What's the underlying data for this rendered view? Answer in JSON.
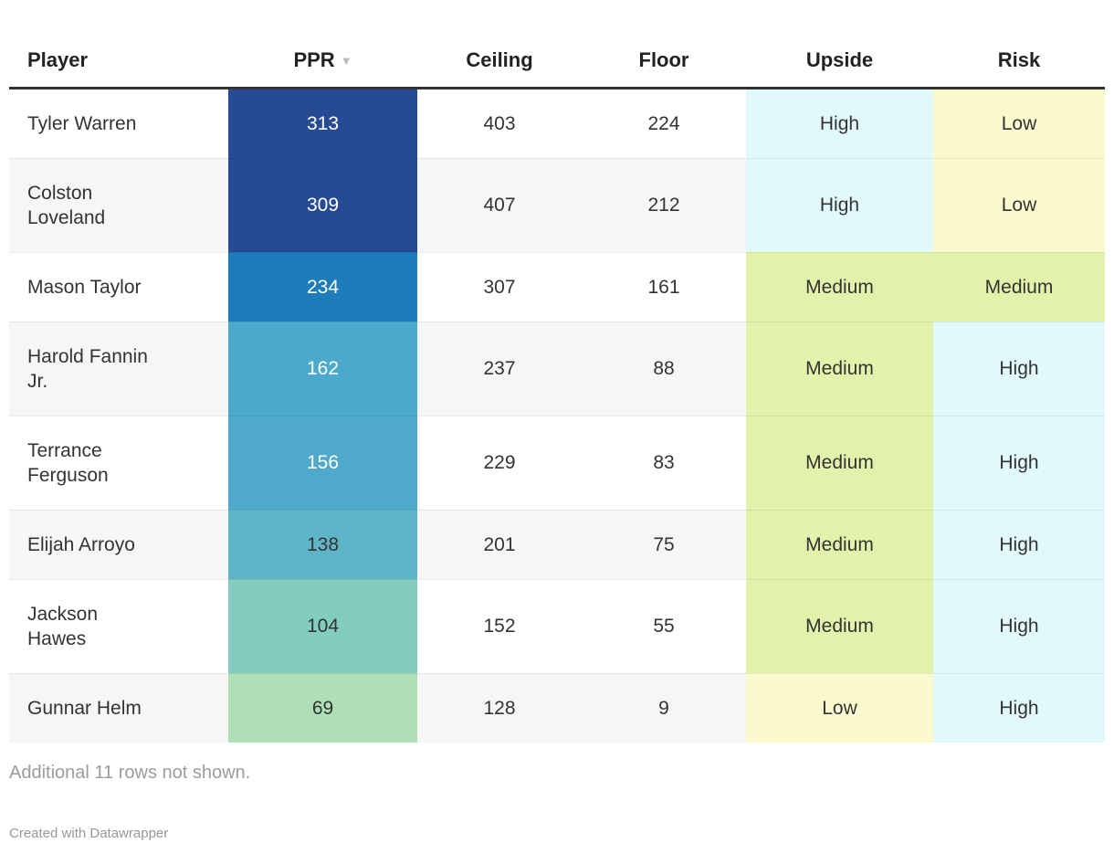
{
  "chart_data": {
    "type": "table",
    "title": "",
    "columns": [
      "Player",
      "PPR",
      "Ceiling",
      "Floor",
      "Upside",
      "Risk"
    ],
    "rows": [
      [
        "Tyler Warren",
        313,
        403,
        224,
        "High",
        "Low"
      ],
      [
        "Colston Loveland",
        309,
        407,
        212,
        "High",
        "Low"
      ],
      [
        "Mason Taylor",
        234,
        307,
        161,
        "Medium",
        "Medium"
      ],
      [
        "Harold Fannin Jr.",
        162,
        237,
        88,
        "Medium",
        "High"
      ],
      [
        "Terrance Ferguson",
        156,
        229,
        83,
        "Medium",
        "High"
      ],
      [
        "Elijah Arroyo",
        138,
        201,
        75,
        "Medium",
        "High"
      ],
      [
        "Jackson Hawes",
        104,
        152,
        55,
        "Medium",
        "High"
      ],
      [
        "Gunnar Helm",
        69,
        128,
        9,
        "Low",
        "High"
      ]
    ],
    "sort": "PPR descending",
    "footnote": "Additional 11 rows not shown.",
    "attribution": "Created with Datawrapper",
    "legend_colors": {
      "high_cell": "#e2f9fc",
      "medium_cell": "#e3f2ab",
      "low_cell": "#fbf9ce",
      "ppr_scale_max": "#274b93",
      "ppr_scale_min": "#aedfb6"
    }
  },
  "header": {
    "player": "Player",
    "ppr": "PPR",
    "sort_icon": "▼",
    "ceiling": "Ceiling",
    "floor": "Floor",
    "upside": "Upside",
    "risk": "Risk"
  },
  "table": {
    "rows": [
      {
        "player": "Tyler Warren",
        "ppr": "313",
        "ppr_bg": "#274b93",
        "ppr_color": "#ffffff",
        "ceiling": "403",
        "floor": "224",
        "upside": "High",
        "upside_bg": "#e2f9fc",
        "risk": "Low",
        "risk_bg": "#fbf9ce"
      },
      {
        "player": "Colston\nLoveland",
        "ppr": "309",
        "ppr_bg": "#274b93",
        "ppr_color": "#ffffff",
        "ceiling": "407",
        "floor": "212",
        "upside": "High",
        "upside_bg": "#e2f9fc",
        "risk": "Low",
        "risk_bg": "#fbf9ce"
      },
      {
        "player": "Mason Taylor",
        "ppr": "234",
        "ppr_bg": "#1f7cba",
        "ppr_color": "#ffffff",
        "ceiling": "307",
        "floor": "161",
        "upside": "Medium",
        "upside_bg": "#e3f2ab",
        "risk": "Medium",
        "risk_bg": "#e3f2ab"
      },
      {
        "player": "Harold Fannin\nJr.",
        "ppr": "162",
        "ppr_bg": "#4ba9cc",
        "ppr_color": "#ffffff",
        "ceiling": "237",
        "floor": "88",
        "upside": "Medium",
        "upside_bg": "#e3f2ab",
        "risk": "High",
        "risk_bg": "#e2f9fc"
      },
      {
        "player": "Terrance\nFerguson",
        "ppr": "156",
        "ppr_bg": "#4ea9cb",
        "ppr_color": "#ffffff",
        "ceiling": "229",
        "floor": "83",
        "upside": "Medium",
        "upside_bg": "#e3f2ab",
        "risk": "High",
        "risk_bg": "#e2f9fc"
      },
      {
        "player": "Elijah Arroyo",
        "ppr": "138",
        "ppr_bg": "#5fb5c8",
        "ppr_color": "#333333",
        "ceiling": "201",
        "floor": "75",
        "upside": "Medium",
        "upside_bg": "#e3f2ab",
        "risk": "High",
        "risk_bg": "#e2f9fc"
      },
      {
        "player": "Jackson\nHawes",
        "ppr": "104",
        "ppr_bg": "#82cdbf",
        "ppr_color": "#333333",
        "ceiling": "152",
        "floor": "55",
        "upside": "Medium",
        "upside_bg": "#e3f2ab",
        "risk": "High",
        "risk_bg": "#e2f9fc"
      },
      {
        "player": "Gunnar Helm",
        "ppr": "69",
        "ppr_bg": "#aedfb6",
        "ppr_color": "#333333",
        "ceiling": "128",
        "floor": "9",
        "upside": "Low",
        "upside_bg": "#fbf9ce",
        "risk": "High",
        "risk_bg": "#e2f9fc"
      }
    ]
  },
  "footnote": "Additional 11 rows not shown.",
  "attribution": "Created with Datawrapper"
}
